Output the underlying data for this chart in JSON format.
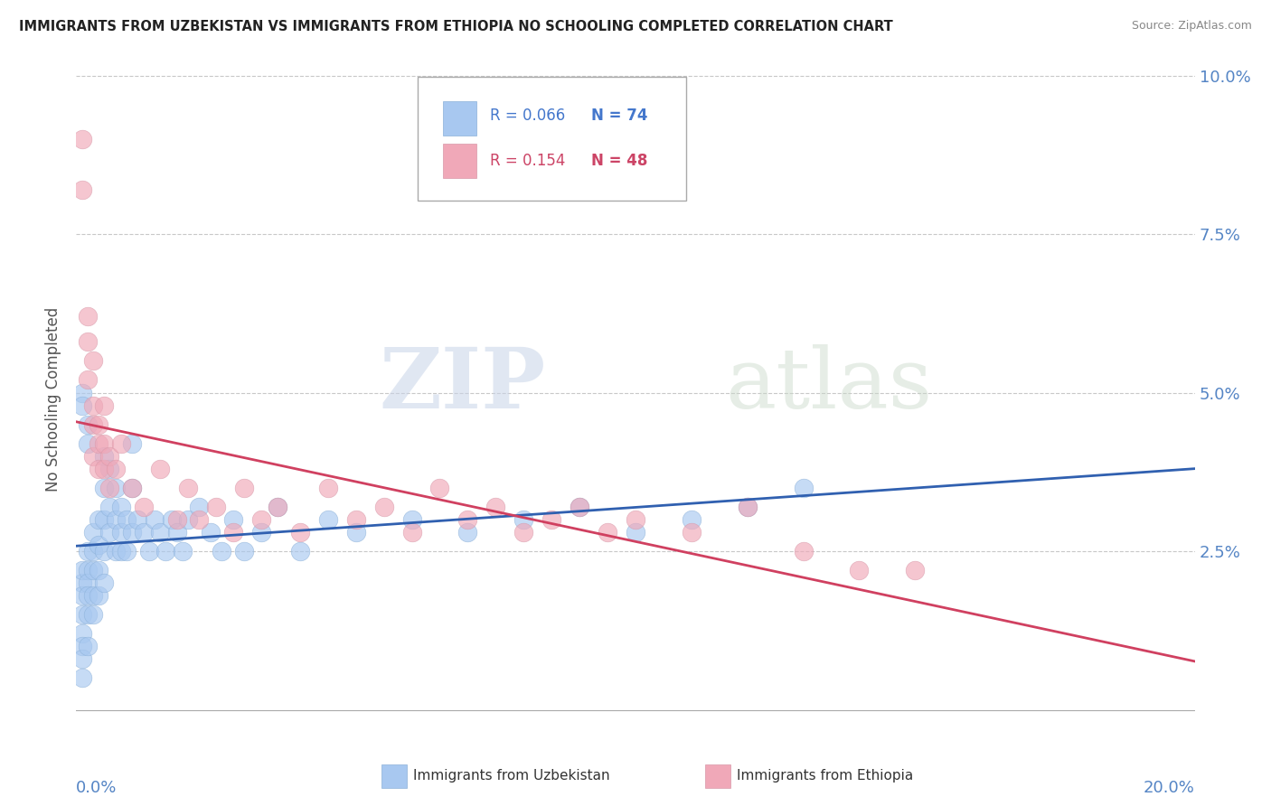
{
  "title": "IMMIGRANTS FROM UZBEKISTAN VS IMMIGRANTS FROM ETHIOPIA NO SCHOOLING COMPLETED CORRELATION CHART",
  "source": "Source: ZipAtlas.com",
  "ylabel": "No Schooling Completed",
  "ytick_values": [
    0.0,
    0.025,
    0.05,
    0.075,
    0.1
  ],
  "ytick_labels": [
    "",
    "2.5%",
    "5.0%",
    "7.5%",
    "10.0%"
  ],
  "xlim": [
    0.0,
    0.2
  ],
  "ylim": [
    -0.005,
    0.103
  ],
  "legend_r1": "R = 0.066",
  "legend_n1": "N = 74",
  "legend_r2": "R = 0.154",
  "legend_n2": "N = 48",
  "color_uzbekistan": "#a8c8f0",
  "color_ethiopia": "#f0a8b8",
  "color_uzbekistan_line": "#3060b0",
  "color_ethiopia_line": "#d04060",
  "watermark_zip": "ZIP",
  "watermark_atlas": "atlas",
  "uzbekistan_x": [
    0.001,
    0.001,
    0.001,
    0.001,
    0.001,
    0.001,
    0.001,
    0.001,
    0.002,
    0.002,
    0.002,
    0.002,
    0.002,
    0.002,
    0.003,
    0.003,
    0.003,
    0.003,
    0.003,
    0.004,
    0.004,
    0.004,
    0.004,
    0.005,
    0.005,
    0.005,
    0.005,
    0.005,
    0.006,
    0.006,
    0.006,
    0.007,
    0.007,
    0.007,
    0.008,
    0.008,
    0.008,
    0.009,
    0.009,
    0.01,
    0.01,
    0.01,
    0.011,
    0.012,
    0.013,
    0.014,
    0.015,
    0.016,
    0.017,
    0.018,
    0.019,
    0.02,
    0.022,
    0.024,
    0.026,
    0.028,
    0.03,
    0.033,
    0.036,
    0.04,
    0.045,
    0.05,
    0.06,
    0.07,
    0.08,
    0.09,
    0.1,
    0.11,
    0.12,
    0.13,
    0.001,
    0.001,
    0.002,
    0.002
  ],
  "uzbekistan_y": [
    0.02,
    0.022,
    0.018,
    0.015,
    0.012,
    0.01,
    0.008,
    0.005,
    0.025,
    0.022,
    0.02,
    0.018,
    0.015,
    0.01,
    0.028,
    0.025,
    0.022,
    0.018,
    0.015,
    0.03,
    0.026,
    0.022,
    0.018,
    0.04,
    0.035,
    0.03,
    0.025,
    0.02,
    0.038,
    0.032,
    0.028,
    0.035,
    0.03,
    0.025,
    0.032,
    0.028,
    0.025,
    0.03,
    0.025,
    0.042,
    0.035,
    0.028,
    0.03,
    0.028,
    0.025,
    0.03,
    0.028,
    0.025,
    0.03,
    0.028,
    0.025,
    0.03,
    0.032,
    0.028,
    0.025,
    0.03,
    0.025,
    0.028,
    0.032,
    0.025,
    0.03,
    0.028,
    0.03,
    0.028,
    0.03,
    0.032,
    0.028,
    0.03,
    0.032,
    0.035,
    0.05,
    0.048,
    0.045,
    0.042
  ],
  "ethiopia_x": [
    0.001,
    0.001,
    0.002,
    0.002,
    0.002,
    0.003,
    0.003,
    0.003,
    0.003,
    0.004,
    0.004,
    0.004,
    0.005,
    0.005,
    0.005,
    0.006,
    0.006,
    0.007,
    0.008,
    0.01,
    0.012,
    0.015,
    0.018,
    0.02,
    0.022,
    0.025,
    0.028,
    0.03,
    0.033,
    0.036,
    0.04,
    0.045,
    0.05,
    0.055,
    0.06,
    0.065,
    0.07,
    0.075,
    0.08,
    0.085,
    0.09,
    0.095,
    0.1,
    0.11,
    0.12,
    0.13,
    0.14,
    0.15
  ],
  "ethiopia_y": [
    0.09,
    0.082,
    0.062,
    0.058,
    0.052,
    0.055,
    0.048,
    0.045,
    0.04,
    0.045,
    0.042,
    0.038,
    0.048,
    0.042,
    0.038,
    0.04,
    0.035,
    0.038,
    0.042,
    0.035,
    0.032,
    0.038,
    0.03,
    0.035,
    0.03,
    0.032,
    0.028,
    0.035,
    0.03,
    0.032,
    0.028,
    0.035,
    0.03,
    0.032,
    0.028,
    0.035,
    0.03,
    0.032,
    0.028,
    0.03,
    0.032,
    0.028,
    0.03,
    0.028,
    0.032,
    0.025,
    0.022,
    0.022
  ]
}
